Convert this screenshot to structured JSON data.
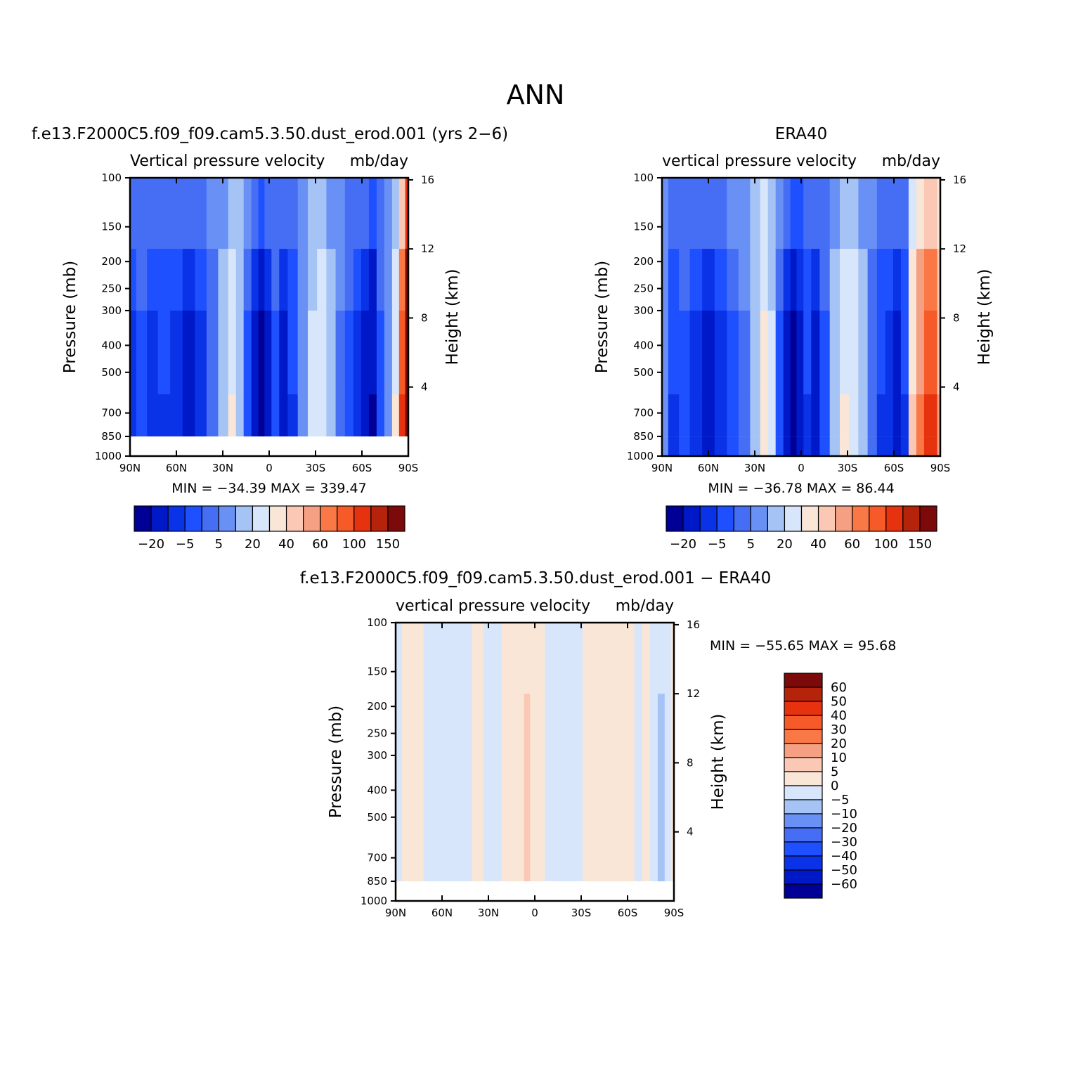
{
  "figure_title": "ANN",
  "colors": {
    "level_fill": [
      "#000096",
      "#0019c8",
      "#0a32e6",
      "#1e50ff",
      "#466ef5",
      "#6991f5",
      "#a5c3f5",
      "#d7e6fa",
      "#fae6d7",
      "#fac8b4",
      "#f5a082",
      "#fa7846",
      "#f55a28",
      "#e6320f",
      "#b4230a",
      "#7d0a0a"
    ],
    "missing": "#ffffff",
    "line": "#000000"
  },
  "panels": [
    {
      "id": "model",
      "title": "f.e13.F2000C5.f09_f09.cam5.3.50.dust_erod.001 (yrs 2-6)",
      "left_label": "Vertical pressure velocity",
      "right_label": "mb/day",
      "min_text": "MIN = -34.39",
      "max_text": "MAX = 339.47"
    },
    {
      "id": "obs",
      "title": "ERA40",
      "left_label": "vertical pressure velocity",
      "right_label": "mb/day",
      "min_text": "MIN = -36.78",
      "max_text": "MAX = 86.44"
    },
    {
      "id": "diff",
      "title": "f.e13.F2000C5.f09_f09.cam5.3.50.dust_erod.001 - ERA40",
      "left_label": "vertical pressure velocity",
      "right_label": "mb/day",
      "min_text": "MIN = -55.65",
      "max_text": "MAX = 95.68"
    }
  ],
  "chart_data": [
    {
      "type": "heatmap",
      "panel": "model",
      "xlabel": "",
      "ylabel": "Pressure (mb)",
      "y2label": "Height (km)",
      "x_ticks": [
        "90N",
        "60N",
        "30N",
        "0",
        "30S",
        "60S",
        "90S"
      ],
      "x_values": [
        90,
        60,
        30,
        0,
        -30,
        -60,
        -90
      ],
      "y_scale": "log",
      "y_ticks": [
        100,
        150,
        200,
        250,
        300,
        400,
        500,
        700,
        850,
        1000
      ],
      "y_range": [
        1000,
        100
      ],
      "y2_ticks": [
        16,
        12,
        8,
        4
      ],
      "colorbar_labels": [
        "-20",
        "-5",
        "5",
        "20",
        "40",
        "60",
        "100",
        "150"
      ],
      "min": -34.39,
      "max": 339.47,
      "columns": [
        {
          "x": 90,
          "value": -16
        },
        {
          "x": 82,
          "value": -12
        },
        {
          "x": 76,
          "value": -16
        },
        {
          "x": 68,
          "value": -14
        },
        {
          "x": 60,
          "value": -18
        },
        {
          "x": 52,
          "value": -22
        },
        {
          "x": 44,
          "value": -16
        },
        {
          "x": 37,
          "value": -8
        },
        {
          "x": 29,
          "value": 2
        },
        {
          "x": 24,
          "value": 10
        },
        {
          "x": 19,
          "value": 4
        },
        {
          "x": 14,
          "value": -10
        },
        {
          "x": 9,
          "value": -20
        },
        {
          "x": 5,
          "value": -30
        },
        {
          "x": 1,
          "value": -20
        },
        {
          "x": -4,
          "value": -12
        },
        {
          "x": -9,
          "value": -22
        },
        {
          "x": -15,
          "value": -14
        },
        {
          "x": -22,
          "value": -4
        },
        {
          "x": -28,
          "value": 6
        },
        {
          "x": -34,
          "value": 8
        },
        {
          "x": -40,
          "value": 2
        },
        {
          "x": -46,
          "value": -6
        },
        {
          "x": -52,
          "value": -12
        },
        {
          "x": -57,
          "value": -18
        },
        {
          "x": -62,
          "value": -22
        },
        {
          "x": -67,
          "value": -28
        },
        {
          "x": -72,
          "value": -12
        },
        {
          "x": -77,
          "value": -4
        },
        {
          "x": -82,
          "value": 10
        },
        {
          "x": -86,
          "value": 60
        },
        {
          "x": -90,
          "value": 150
        }
      ]
    },
    {
      "type": "heatmap",
      "panel": "obs",
      "xlabel": "",
      "ylabel": "Pressure (mb)",
      "y2label": "Height (km)",
      "x_ticks": [
        "90N",
        "60N",
        "30N",
        "0",
        "30S",
        "60S",
        "90S"
      ],
      "x_values": [
        90,
        60,
        30,
        0,
        -30,
        -60,
        -90
      ],
      "y_scale": "log",
      "y_ticks": [
        100,
        150,
        200,
        250,
        300,
        400,
        500,
        700,
        850,
        1000
      ],
      "y_range": [
        1000,
        100
      ],
      "y2_ticks": [
        16,
        12,
        8,
        4
      ],
      "colorbar_labels": [
        "-20",
        "-5",
        "5",
        "20",
        "40",
        "60",
        "100",
        "150"
      ],
      "min": -36.78,
      "max": 86.44,
      "columns": [
        {
          "x": 90,
          "value": -4
        },
        {
          "x": 82,
          "value": -14
        },
        {
          "x": 76,
          "value": -12
        },
        {
          "x": 68,
          "value": -16
        },
        {
          "x": 60,
          "value": -22
        },
        {
          "x": 52,
          "value": -16
        },
        {
          "x": 44,
          "value": -10
        },
        {
          "x": 37,
          "value": -6
        },
        {
          "x": 29,
          "value": 4
        },
        {
          "x": 24,
          "value": 12
        },
        {
          "x": 19,
          "value": 6
        },
        {
          "x": 14,
          "value": -10
        },
        {
          "x": 9,
          "value": -22
        },
        {
          "x": 5,
          "value": -32
        },
        {
          "x": 1,
          "value": -24
        },
        {
          "x": -4,
          "value": -14
        },
        {
          "x": -9,
          "value": -20
        },
        {
          "x": -15,
          "value": -12
        },
        {
          "x": -22,
          "value": 2
        },
        {
          "x": -28,
          "value": 10
        },
        {
          "x": -34,
          "value": 8
        },
        {
          "x": -40,
          "value": 2
        },
        {
          "x": -46,
          "value": -8
        },
        {
          "x": -52,
          "value": -14
        },
        {
          "x": -57,
          "value": -18
        },
        {
          "x": -62,
          "value": -22
        },
        {
          "x": -67,
          "value": -14
        },
        {
          "x": -72,
          "value": 20
        },
        {
          "x": -77,
          "value": 40
        },
        {
          "x": -82,
          "value": 55
        },
        {
          "x": -86,
          "value": 60
        },
        {
          "x": -90,
          "value": 30
        }
      ]
    },
    {
      "type": "heatmap",
      "panel": "diff",
      "xlabel": "",
      "ylabel": "Pressure (mb)",
      "y2label": "Height (km)",
      "x_ticks": [
        "90N",
        "60N",
        "30N",
        "0",
        "30S",
        "60S",
        "90S"
      ],
      "x_values": [
        90,
        60,
        30,
        0,
        -30,
        -60,
        -90
      ],
      "y_scale": "log",
      "y_ticks": [
        100,
        150,
        200,
        250,
        300,
        400,
        500,
        700,
        850,
        1000
      ],
      "y_range": [
        1000,
        100
      ],
      "y2_ticks": [
        16,
        12,
        8,
        4
      ],
      "colorbar_labels": [
        "60",
        "50",
        "40",
        "30",
        "20",
        "10",
        "5",
        "0",
        "-5",
        "-10",
        "-20",
        "-30",
        "-40",
        "-50",
        "-60"
      ],
      "min": -55.65,
      "max": 95.68,
      "columns": [
        {
          "x": 90,
          "value": -3
        },
        {
          "x": 82,
          "value": 2
        },
        {
          "x": 76,
          "value": 3
        },
        {
          "x": 68,
          "value": -2
        },
        {
          "x": 60,
          "value": -3
        },
        {
          "x": 52,
          "value": -4
        },
        {
          "x": 44,
          "value": -3
        },
        {
          "x": 37,
          "value": 2
        },
        {
          "x": 29,
          "value": -3
        },
        {
          "x": 24,
          "value": -2
        },
        {
          "x": 19,
          "value": 3
        },
        {
          "x": 14,
          "value": 4
        },
        {
          "x": 9,
          "value": 3
        },
        {
          "x": 5,
          "value": 8
        },
        {
          "x": 1,
          "value": 4
        },
        {
          "x": -4,
          "value": 2
        },
        {
          "x": -9,
          "value": -3
        },
        {
          "x": -15,
          "value": -3
        },
        {
          "x": -22,
          "value": -4
        },
        {
          "x": -28,
          "value": -2
        },
        {
          "x": -34,
          "value": 2
        },
        {
          "x": -40,
          "value": 3
        },
        {
          "x": -46,
          "value": 3
        },
        {
          "x": -52,
          "value": 2
        },
        {
          "x": -57,
          "value": 3
        },
        {
          "x": -62,
          "value": 4
        },
        {
          "x": -67,
          "value": -3
        },
        {
          "x": -72,
          "value": 3
        },
        {
          "x": -77,
          "value": -4
        },
        {
          "x": -82,
          "value": -8
        },
        {
          "x": -86,
          "value": -3
        },
        {
          "x": -90,
          "value": 2
        }
      ]
    }
  ]
}
